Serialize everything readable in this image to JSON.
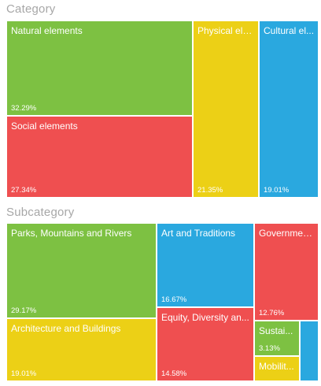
{
  "colors": {
    "green": "#7dc142",
    "red": "#ef4f50",
    "yellow": "#ecd016",
    "blue": "#2aa8df",
    "title_gray": "#a7a7a7"
  },
  "category": {
    "title": "Category"
  },
  "subcategory": {
    "title": "Subcategory"
  },
  "chart_data": [
    {
      "type": "treemap",
      "title": "Category",
      "items": [
        {
          "label": "Natural elements",
          "percent": 32.29,
          "value_label": "32.29%",
          "color": "#7dc142"
        },
        {
          "label": "Social elements",
          "percent": 27.34,
          "value_label": "27.34%",
          "color": "#ef4f50"
        },
        {
          "label": "Physical ele...",
          "percent": 21.35,
          "value_label": "21.35%",
          "color": "#ecd016"
        },
        {
          "label": "Cultural el...",
          "percent": 19.01,
          "value_label": "19.01%",
          "color": "#2aa8df"
        }
      ]
    },
    {
      "type": "treemap",
      "title": "Subcategory",
      "items": [
        {
          "label": "Parks, Mountains and Rivers",
          "percent": 29.17,
          "value_label": "29.17%",
          "color": "#7dc142"
        },
        {
          "label": "Architecture and Buildings",
          "percent": 19.01,
          "value_label": "19.01%",
          "color": "#ecd016"
        },
        {
          "label": "Art and Traditions",
          "percent": 16.67,
          "value_label": "16.67%",
          "color": "#2aa8df"
        },
        {
          "label": "Equity, Diversity an...",
          "percent": 14.58,
          "value_label": "14.58%",
          "color": "#ef4f50"
        },
        {
          "label": "Governmen...",
          "percent": 12.76,
          "value_label": "12.76%",
          "color": "#ef4f50"
        },
        {
          "label": "Sustai...",
          "percent": 3.13,
          "value_label": "3.13%",
          "color": "#7dc142"
        },
        {
          "label": "Mobilit...",
          "percent": null,
          "value_label": "",
          "color": "#ecd016"
        },
        {
          "label": "",
          "percent": null,
          "value_label": "",
          "color": "#2aa8df"
        }
      ]
    }
  ]
}
